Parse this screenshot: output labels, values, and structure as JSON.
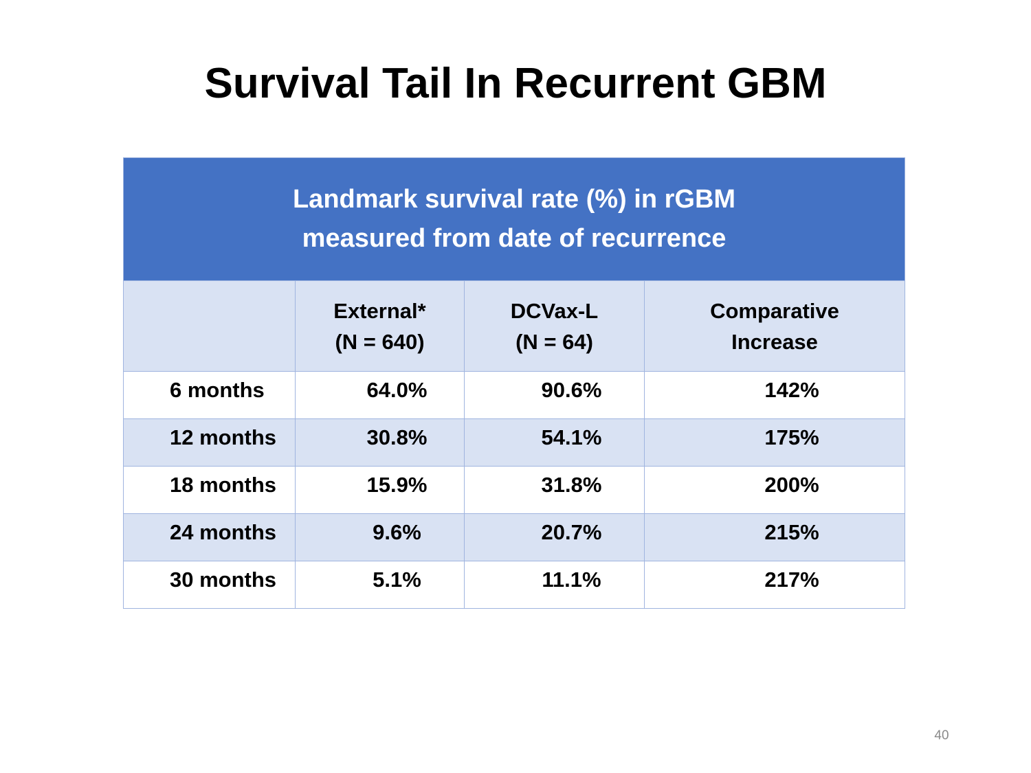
{
  "slide": {
    "title": "Survival Tail In Recurrent GBM",
    "page_number": "40"
  },
  "table": {
    "caption_line1": "Landmark survival rate (%) in rGBM",
    "caption_line2": "measured from date of recurrence",
    "headers": [
      {
        "line1": "",
        "line2": ""
      },
      {
        "line1": "External*",
        "line2": "(N = 640)"
      },
      {
        "line1": "DCVax-L",
        "line2": "(N = 64)"
      },
      {
        "line1": "Comparative",
        "line2": "Increase"
      }
    ],
    "rows": [
      {
        "label": "6 months",
        "external": "64.0%",
        "dcvax": "90.6%",
        "increase": "142%"
      },
      {
        "label": "12 months",
        "external": "30.8%",
        "dcvax": "54.1%",
        "increase": "175%"
      },
      {
        "label": "18 months",
        "external": "15.9%",
        "dcvax": "31.8%",
        "increase": "200%"
      },
      {
        "label": "24 months",
        "external": "9.6%",
        "dcvax": "20.7%",
        "increase": "215%"
      },
      {
        "label": "30 months",
        "external": "5.1%",
        "dcvax": "11.1%",
        "increase": "217%"
      }
    ]
  },
  "colors": {
    "header_fill": "#4472c4",
    "band_fill": "#d9e2f3",
    "border": "#9fb4df"
  }
}
